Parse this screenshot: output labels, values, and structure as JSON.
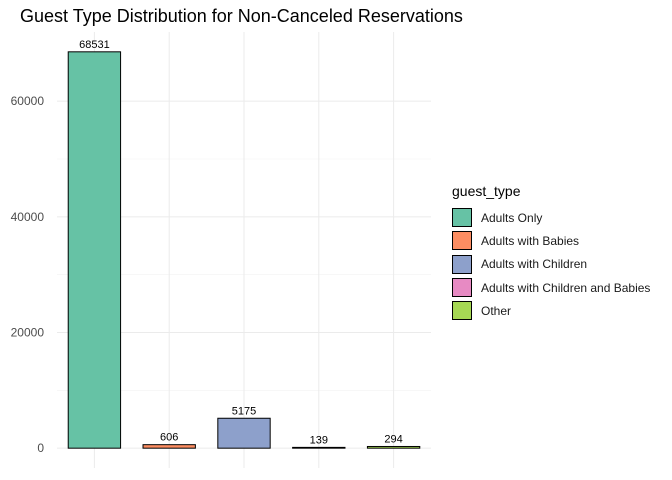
{
  "chart_data": {
    "type": "bar",
    "title": "Guest Type Distribution for Non-Canceled Reservations",
    "xlabel": "",
    "ylabel": "",
    "categories": [
      "Adults Only",
      "Adults with Babies",
      "Adults with Children",
      "Adults with Children and Babies",
      "Other"
    ],
    "values": [
      68531,
      606,
      5175,
      139,
      294
    ],
    "data_labels": [
      "68531",
      "606",
      "5175",
      "139",
      "294"
    ],
    "colors": [
      "#66C2A5",
      "#FC8D62",
      "#8DA0CB",
      "#E78AC3",
      "#A6D854"
    ],
    "ylim": [
      -3426.55,
      71957.55
    ],
    "yticks": [
      0,
      20000,
      40000,
      60000
    ],
    "ytick_labels": [
      "0",
      "20000",
      "40000",
      "60000"
    ],
    "show_x_tick_labels": false,
    "grid": true,
    "legend": {
      "title": "guest_type",
      "placement": "right",
      "entries": [
        "Adults Only",
        "Adults with Babies",
        "Adults with Children",
        "Adults with Children and Babies",
        "Other"
      ]
    }
  }
}
